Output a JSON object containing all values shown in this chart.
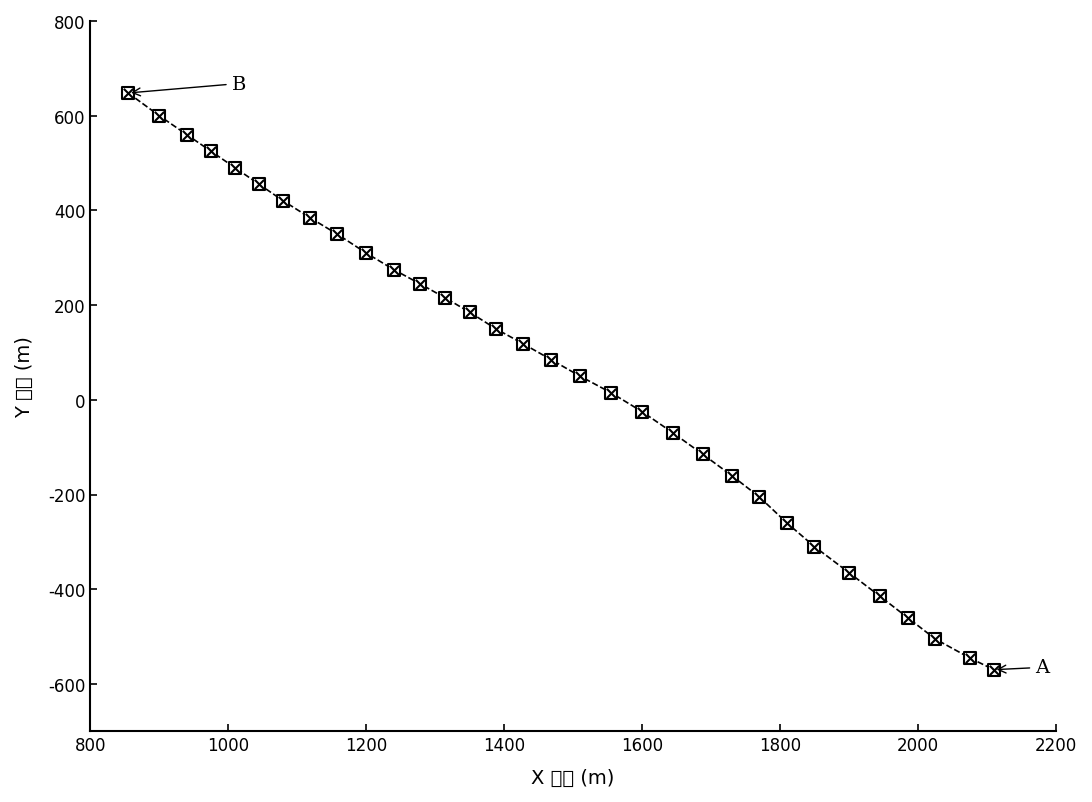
{
  "x_points": [
    855,
    900,
    940,
    975,
    1010,
    1045,
    1080,
    1118,
    1158,
    1200,
    1240,
    1278,
    1315,
    1350,
    1388,
    1428,
    1468,
    1510,
    1555,
    1600,
    1645,
    1688,
    1730,
    1770,
    1810,
    1850,
    1900,
    1945,
    1985,
    2025,
    2075,
    2110
  ],
  "y_points": [
    648,
    600,
    560,
    525,
    490,
    455,
    420,
    385,
    350,
    310,
    275,
    245,
    215,
    185,
    150,
    118,
    85,
    50,
    15,
    -25,
    -70,
    -115,
    -160,
    -205,
    -260,
    -310,
    -365,
    -415,
    -460,
    -505,
    -545,
    -570
  ],
  "xlim": [
    800,
    2200
  ],
  "ylim": [
    -700,
    800
  ],
  "xticks": [
    800,
    1000,
    1200,
    1400,
    1600,
    1800,
    2000,
    2200
  ],
  "yticks": [
    -600,
    -400,
    -200,
    0,
    200,
    400,
    600,
    800
  ],
  "xlabel": "X 坐标 (m)",
  "ylabel": "Y 坐标 (m)",
  "line_color": "#000000",
  "marker_color": "#000000",
  "label_A": "A",
  "label_B": "B",
  "background_color": "#ffffff",
  "annotation_fontsize": 14,
  "axis_label_fontsize": 14,
  "tick_fontsize": 12
}
